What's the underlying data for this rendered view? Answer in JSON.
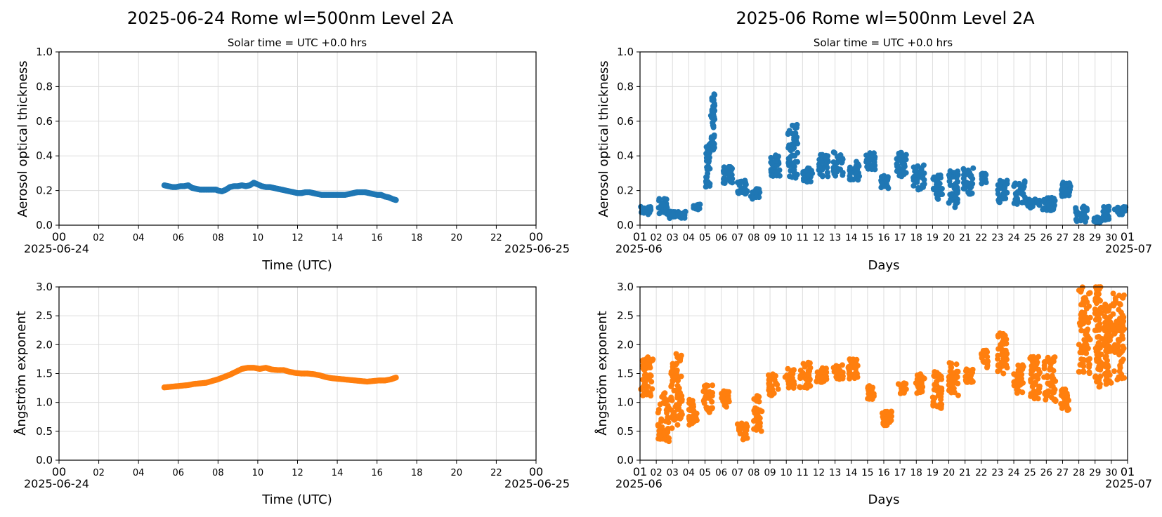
{
  "panels": {
    "day": {
      "title": "2025-06-24  Rome  wl=500nm  Level 2A",
      "subtitle": "Solar time = UTC +0.0 hrs",
      "xlabel": "Time (UTC)",
      "x_start_label": "2025-06-24",
      "x_end_label": "2025-06-25"
    },
    "month": {
      "title": "2025-06  Rome  wl=500nm  Level 2A",
      "subtitle": "Solar time = UTC +0.0 hrs",
      "xlabel": "Days",
      "x_start_label": "2025-06",
      "x_end_label": "2025-07"
    }
  },
  "colors": {
    "aod": "#1f77b4",
    "angstrom": "#ff7f0e",
    "grid": "#dddddd"
  },
  "chart_data": [
    {
      "id": "day-aod",
      "type": "scatter",
      "title": "2025-06-24  Rome  wl=500nm  Level 2A",
      "subtitle": "Solar time = UTC +0.0 hrs",
      "xlabel": "Time (UTC)",
      "ylabel": "Aerosol optical thickness",
      "xlim": [
        0,
        24
      ],
      "ylim": [
        0,
        1
      ],
      "xticks": [
        "00",
        "02",
        "04",
        "06",
        "08",
        "10",
        "12",
        "14",
        "16",
        "18",
        "20",
        "22",
        "00"
      ],
      "yticks": [
        "0.0",
        "0.2",
        "0.4",
        "0.6",
        "0.8",
        "1.0"
      ],
      "grid": true,
      "series": [
        {
          "points": [
            [
              5.3,
              0.23
            ],
            [
              5.5,
              0.225
            ],
            [
              5.7,
              0.22
            ],
            [
              5.9,
              0.22
            ],
            [
              6.1,
              0.225
            ],
            [
              6.3,
              0.225
            ],
            [
              6.5,
              0.23
            ],
            [
              6.7,
              0.215
            ],
            [
              6.9,
              0.21
            ],
            [
              7.1,
              0.205
            ],
            [
              7.3,
              0.205
            ],
            [
              7.5,
              0.205
            ],
            [
              7.7,
              0.205
            ],
            [
              7.9,
              0.205
            ],
            [
              8.0,
              0.2
            ],
            [
              8.2,
              0.195
            ],
            [
              8.4,
              0.205
            ],
            [
              8.6,
              0.22
            ],
            [
              8.8,
              0.225
            ],
            [
              9.0,
              0.225
            ],
            [
              9.2,
              0.23
            ],
            [
              9.4,
              0.225
            ],
            [
              9.6,
              0.23
            ],
            [
              9.8,
              0.245
            ],
            [
              10.0,
              0.235
            ],
            [
              10.2,
              0.225
            ],
            [
              10.4,
              0.22
            ],
            [
              10.6,
              0.22
            ],
            [
              10.8,
              0.215
            ],
            [
              11.0,
              0.21
            ],
            [
              11.2,
              0.205
            ],
            [
              11.4,
              0.2
            ],
            [
              11.6,
              0.195
            ],
            [
              11.8,
              0.19
            ],
            [
              12.0,
              0.185
            ],
            [
              12.2,
              0.185
            ],
            [
              12.4,
              0.19
            ],
            [
              12.6,
              0.19
            ],
            [
              12.8,
              0.185
            ],
            [
              13.0,
              0.18
            ],
            [
              13.2,
              0.175
            ],
            [
              13.4,
              0.175
            ],
            [
              13.6,
              0.175
            ],
            [
              13.8,
              0.175
            ],
            [
              14.0,
              0.175
            ],
            [
              14.2,
              0.175
            ],
            [
              14.4,
              0.175
            ],
            [
              14.6,
              0.18
            ],
            [
              14.8,
              0.185
            ],
            [
              15.0,
              0.19
            ],
            [
              15.2,
              0.19
            ],
            [
              15.4,
              0.19
            ],
            [
              15.6,
              0.185
            ],
            [
              15.8,
              0.18
            ],
            [
              16.0,
              0.175
            ],
            [
              16.2,
              0.175
            ],
            [
              16.4,
              0.165
            ],
            [
              16.6,
              0.16
            ],
            [
              16.8,
              0.15
            ],
            [
              16.95,
              0.145
            ]
          ]
        }
      ]
    },
    {
      "id": "month-aod",
      "type": "scatter",
      "title": "2025-06  Rome  wl=500nm  Level 2A",
      "subtitle": "Solar time = UTC +0.0 hrs",
      "xlabel": "Days",
      "ylabel": "Aerosol optical thickness",
      "xlim": [
        1,
        31
      ],
      "ylim": [
        0,
        1
      ],
      "xticks": [
        "01",
        "02",
        "03",
        "04",
        "05",
        "06",
        "07",
        "08",
        "09",
        "10",
        "11",
        "12",
        "13",
        "14",
        "15",
        "16",
        "17",
        "18",
        "19",
        "20",
        "21",
        "22",
        "23",
        "24",
        "25",
        "26",
        "27",
        "28",
        "29",
        "30",
        "01"
      ],
      "yticks": [
        "0.0",
        "0.2",
        "0.4",
        "0.6",
        "0.8",
        "1.0"
      ],
      "grid": true,
      "clusters": [
        [
          1.05,
          1.7,
          0.06,
          0.11
        ],
        [
          2.1,
          2.7,
          0.06,
          0.16
        ],
        [
          2.8,
          3.2,
          0.04,
          0.08
        ],
        [
          3.3,
          3.8,
          0.04,
          0.08
        ],
        [
          4.2,
          4.7,
          0.09,
          0.12
        ],
        [
          5.05,
          5.3,
          0.22,
          0.47
        ],
        [
          5.35,
          5.6,
          0.43,
          0.76
        ],
        [
          6.1,
          6.7,
          0.24,
          0.34
        ],
        [
          7.0,
          7.6,
          0.18,
          0.26
        ],
        [
          7.8,
          8.4,
          0.15,
          0.22
        ],
        [
          9.0,
          9.6,
          0.28,
          0.41
        ],
        [
          10.1,
          10.7,
          0.27,
          0.58
        ],
        [
          11.0,
          11.6,
          0.25,
          0.34
        ],
        [
          12.0,
          12.6,
          0.28,
          0.41
        ],
        [
          12.9,
          13.5,
          0.28,
          0.43
        ],
        [
          13.9,
          14.5,
          0.26,
          0.37
        ],
        [
          14.9,
          15.5,
          0.32,
          0.42
        ],
        [
          15.8,
          16.3,
          0.21,
          0.29
        ],
        [
          16.8,
          17.4,
          0.28,
          0.42
        ],
        [
          17.8,
          18.5,
          0.2,
          0.35
        ],
        [
          19.0,
          19.6,
          0.15,
          0.29
        ],
        [
          20.0,
          20.6,
          0.1,
          0.32
        ],
        [
          20.9,
          21.5,
          0.18,
          0.33
        ],
        [
          22.0,
          22.3,
          0.24,
          0.3
        ],
        [
          23.0,
          23.6,
          0.13,
          0.26
        ],
        [
          24.0,
          24.7,
          0.11,
          0.26
        ],
        [
          24.8,
          25.6,
          0.1,
          0.15
        ],
        [
          25.7,
          26.6,
          0.07,
          0.16
        ],
        [
          26.9,
          27.5,
          0.16,
          0.25
        ],
        [
          27.8,
          28.5,
          0.02,
          0.11
        ],
        [
          28.9,
          29.4,
          0.01,
          0.05
        ],
        [
          29.5,
          29.9,
          0.03,
          0.11
        ],
        [
          30.2,
          30.9,
          0.06,
          0.11
        ]
      ]
    },
    {
      "id": "day-angstrom",
      "type": "scatter",
      "xlabel": "Time (UTC)",
      "ylabel": "Ångström exponent",
      "xlim": [
        0,
        24
      ],
      "ylim": [
        0,
        3
      ],
      "xticks": [
        "00",
        "02",
        "04",
        "06",
        "08",
        "10",
        "12",
        "14",
        "16",
        "18",
        "20",
        "22",
        "00"
      ],
      "yticks": [
        "0.0",
        "0.5",
        "1.0",
        "1.5",
        "2.0",
        "2.5",
        "3.0"
      ],
      "grid": true,
      "series": [
        {
          "points": [
            [
              5.3,
              1.26
            ],
            [
              5.6,
              1.27
            ],
            [
              5.9,
              1.28
            ],
            [
              6.2,
              1.29
            ],
            [
              6.5,
              1.3
            ],
            [
              6.8,
              1.32
            ],
            [
              7.1,
              1.33
            ],
            [
              7.4,
              1.34
            ],
            [
              7.7,
              1.37
            ],
            [
              8.0,
              1.4
            ],
            [
              8.3,
              1.44
            ],
            [
              8.6,
              1.48
            ],
            [
              8.9,
              1.53
            ],
            [
              9.2,
              1.58
            ],
            [
              9.5,
              1.6
            ],
            [
              9.8,
              1.6
            ],
            [
              10.1,
              1.58
            ],
            [
              10.4,
              1.6
            ],
            [
              10.7,
              1.57
            ],
            [
              11.0,
              1.56
            ],
            [
              11.3,
              1.56
            ],
            [
              11.6,
              1.53
            ],
            [
              11.9,
              1.51
            ],
            [
              12.2,
              1.5
            ],
            [
              12.5,
              1.5
            ],
            [
              12.8,
              1.49
            ],
            [
              13.1,
              1.47
            ],
            [
              13.4,
              1.44
            ],
            [
              13.7,
              1.42
            ],
            [
              14.0,
              1.41
            ],
            [
              14.3,
              1.4
            ],
            [
              14.6,
              1.39
            ],
            [
              14.9,
              1.38
            ],
            [
              15.2,
              1.37
            ],
            [
              15.5,
              1.36
            ],
            [
              15.8,
              1.37
            ],
            [
              16.1,
              1.38
            ],
            [
              16.4,
              1.38
            ],
            [
              16.7,
              1.4
            ],
            [
              16.95,
              1.43
            ]
          ]
        }
      ]
    },
    {
      "id": "month-angstrom",
      "type": "scatter",
      "xlabel": "Days",
      "ylabel": "Ångström exponent",
      "xlim": [
        1,
        31
      ],
      "ylim": [
        0,
        3
      ],
      "xticks": [
        "01",
        "02",
        "03",
        "04",
        "05",
        "06",
        "07",
        "08",
        "09",
        "10",
        "11",
        "12",
        "13",
        "14",
        "15",
        "16",
        "17",
        "18",
        "19",
        "20",
        "21",
        "22",
        "23",
        "24",
        "25",
        "26",
        "27",
        "28",
        "29",
        "30",
        "01"
      ],
      "yticks": [
        "0.0",
        "0.5",
        "1.0",
        "1.5",
        "2.0",
        "2.5",
        "3.0"
      ],
      "grid": true,
      "clusters": [
        [
          1.05,
          1.8,
          1.1,
          1.8
        ],
        [
          2.1,
          2.8,
          0.3,
          1.2
        ],
        [
          2.9,
          3.6,
          0.55,
          1.85
        ],
        [
          4.0,
          4.5,
          0.6,
          1.05
        ],
        [
          4.9,
          5.5,
          0.8,
          1.3
        ],
        [
          6.0,
          6.5,
          0.9,
          1.2
        ],
        [
          7.0,
          7.6,
          0.35,
          0.65
        ],
        [
          8.0,
          8.5,
          0.5,
          1.12
        ],
        [
          8.9,
          9.5,
          1.1,
          1.5
        ],
        [
          9.9,
          10.5,
          1.25,
          1.6
        ],
        [
          10.8,
          11.5,
          1.25,
          1.7
        ],
        [
          11.8,
          12.5,
          1.35,
          1.6
        ],
        [
          12.9,
          13.5,
          1.4,
          1.65
        ],
        [
          13.8,
          14.5,
          1.4,
          1.75
        ],
        [
          15.0,
          15.4,
          1.05,
          1.3
        ],
        [
          15.9,
          16.5,
          0.6,
          0.85
        ],
        [
          16.9,
          17.4,
          1.15,
          1.35
        ],
        [
          17.9,
          18.5,
          1.15,
          1.5
        ],
        [
          19.0,
          19.6,
          0.9,
          1.55
        ],
        [
          20.0,
          20.6,
          1.1,
          1.7
        ],
        [
          21.0,
          21.5,
          1.35,
          1.6
        ],
        [
          22.0,
          22.4,
          1.6,
          1.9
        ],
        [
          23.0,
          23.6,
          1.5,
          2.25
        ],
        [
          24.0,
          24.6,
          1.15,
          1.65
        ],
        [
          25.0,
          25.6,
          1.05,
          1.8
        ],
        [
          25.8,
          26.6,
          1.0,
          1.8
        ],
        [
          26.9,
          27.5,
          0.85,
          1.25
        ],
        [
          28.0,
          28.7,
          1.5,
          3.0
        ],
        [
          29.0,
          29.4,
          1.25,
          3.0
        ],
        [
          29.6,
          30.0,
          1.3,
          2.7
        ],
        [
          30.1,
          30.8,
          1.35,
          2.9
        ]
      ]
    }
  ]
}
